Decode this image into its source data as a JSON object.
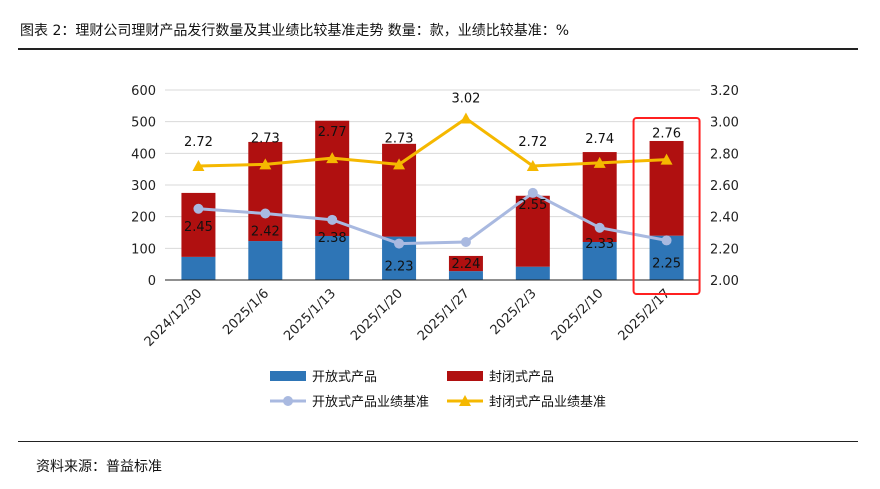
{
  "header": {
    "title": "图表 2：理财公司理财产品发行数量及其业绩比较基准走势   数量：款，业绩比较基准：%"
  },
  "footer": {
    "source": "资料来源：普益标准"
  },
  "chart_data": {
    "type": "bar",
    "title": "理财公司理财产品发行数量及其业绩比较基准走势",
    "categories": [
      "2024/12/30",
      "2025/1/6",
      "2025/1/13",
      "2025/1/20",
      "2025/1/27",
      "2025/2/3",
      "2025/2/10",
      "2025/2/17"
    ],
    "series": [
      {
        "name": "开放式产品",
        "type": "bar",
        "axis": "left",
        "color": "#2e75b6",
        "values": [
          73,
          123,
          139,
          137,
          28,
          42,
          120,
          140
        ]
      },
      {
        "name": "封闭式产品",
        "type": "bar",
        "axis": "left",
        "color": "#b01010",
        "values": [
          202,
          313,
          364,
          293,
          48,
          224,
          284,
          299
        ]
      },
      {
        "name": "开放式产品业绩基准",
        "type": "line",
        "axis": "right",
        "color": "#a9b9e0",
        "values": [
          2.45,
          2.42,
          2.38,
          2.23,
          2.24,
          2.55,
          2.33,
          2.25
        ]
      },
      {
        "name": "封闭式产品业绩基准",
        "type": "line",
        "axis": "right",
        "color": "#f5b800",
        "values": [
          2.72,
          2.73,
          2.77,
          2.73,
          3.02,
          2.72,
          2.74,
          2.76
        ]
      }
    ],
    "ylim": [
      0,
      600
    ],
    "yticks": [
      0,
      100,
      200,
      300,
      400,
      500,
      600
    ],
    "y2lim": [
      2.0,
      3.2
    ],
    "y2ticks": [
      "2.00",
      "2.20",
      "2.40",
      "2.60",
      "2.80",
      "3.00",
      "3.20"
    ],
    "highlight_category": "2025/2/17",
    "legend": "bottom"
  }
}
